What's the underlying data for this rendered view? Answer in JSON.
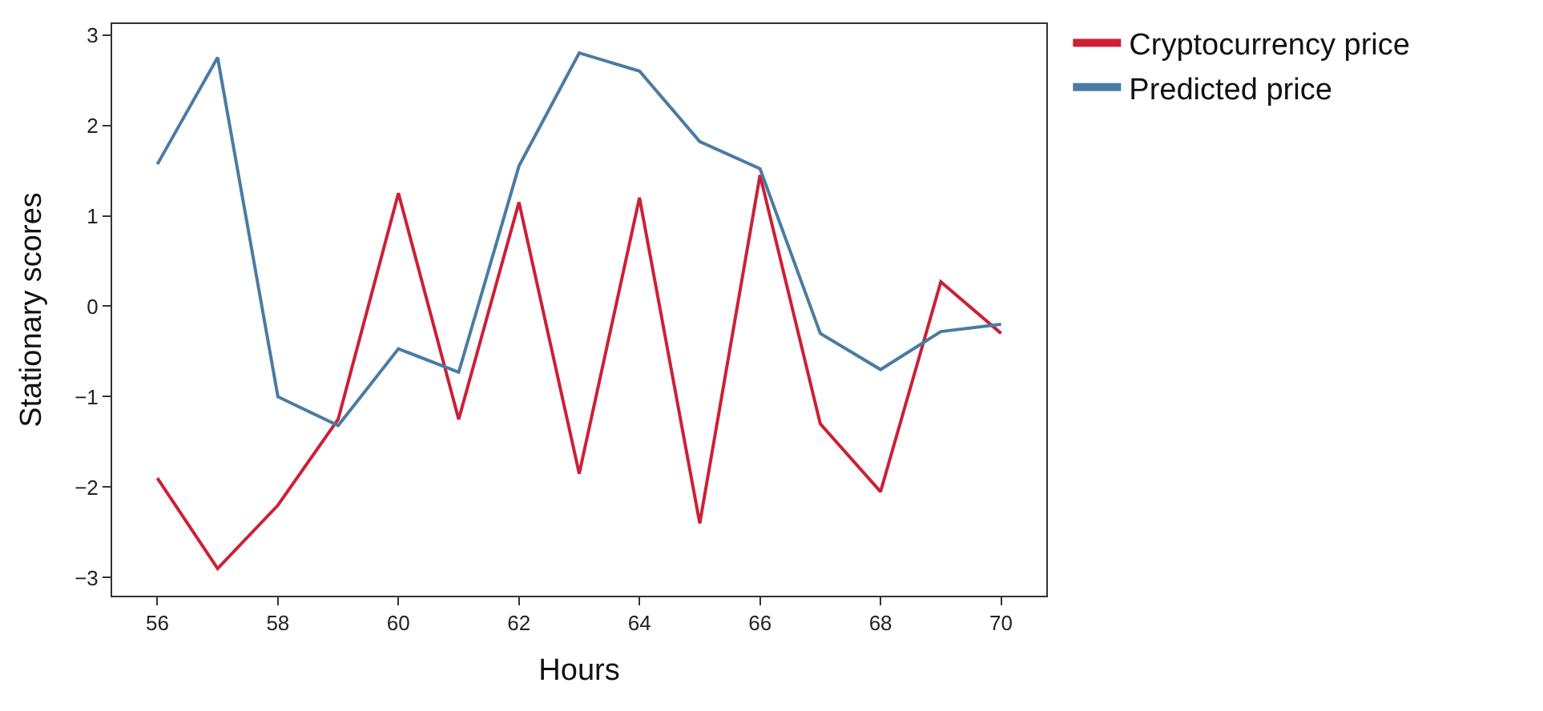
{
  "chart_data": {
    "type": "line",
    "xlabel": "Hours",
    "ylabel": "Stationary scores",
    "x": [
      56,
      57,
      58,
      59,
      60,
      61,
      62,
      63,
      64,
      65,
      66,
      67,
      68,
      69,
      70
    ],
    "series": [
      {
        "name": "Cryptocurrency price",
        "color": "#cc2036",
        "values": [
          -1.9,
          -2.9,
          -2.2,
          -1.25,
          1.25,
          -1.25,
          1.15,
          -1.85,
          1.2,
          -2.4,
          1.45,
          -1.3,
          -2.05,
          0.27,
          -0.3
        ]
      },
      {
        "name": "Predicted price",
        "color": "#4a7ba3",
        "values": [
          1.57,
          2.75,
          -1.0,
          -1.32,
          -0.47,
          -0.73,
          1.55,
          2.8,
          2.6,
          1.82,
          1.52,
          -0.3,
          -0.7,
          -0.28,
          -0.2
        ]
      }
    ],
    "xlim": [
      55.25,
      70.75
    ],
    "xticks": [
      56,
      58,
      60,
      62,
      64,
      66,
      68,
      70
    ],
    "ylim": [
      -3.2,
      3.12
    ],
    "yticks": [
      -3,
      -2,
      -1,
      0,
      1,
      2,
      3
    ],
    "legend": "top right",
    "marker": "none",
    "line_style": "solid"
  }
}
